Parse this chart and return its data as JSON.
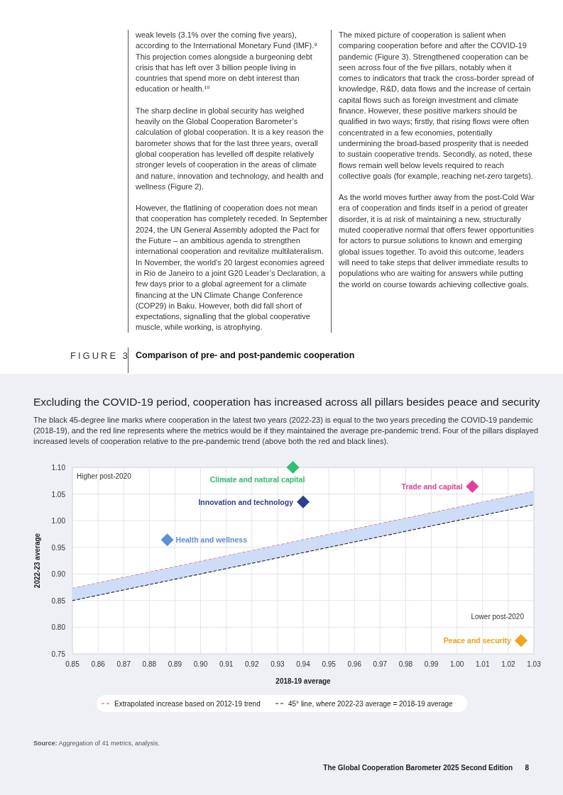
{
  "chart_data": {
    "type": "scatter",
    "title": "Excluding the COVID-19 period, cooperation has increased across all pillars besides peace and security",
    "subtitle": "The black 45-degree line marks where cooperation in the latest two years (2022-23) is equal to the two years preceding the COVID-19 pandemic (2018-19), and the red line represents where the metrics would be if they maintained the average pre-pandemic trend. Four of the pillars displayed increased levels of cooperation relative to the pre-pandemic trend (above both the red and black lines).",
    "xlabel": "2018-19 average",
    "ylabel": "2022-23 average",
    "xlim": [
      0.85,
      1.03
    ],
    "xticks": [
      0.85,
      0.86,
      0.87,
      0.88,
      0.89,
      {
        "value": 0.9,
        "label": "0.90"
      },
      0.91,
      0.92,
      0.93,
      0.94,
      0.95,
      0.96,
      0.97,
      0.98,
      0.99,
      {
        "value": 1,
        "label": "1.00"
      },
      1.01,
      1.02,
      1.03
    ],
    "ylim": [
      0.75,
      1.1
    ],
    "yticks": [
      0.75,
      {
        "value": 0.8,
        "label": "0.80"
      },
      0.85,
      {
        "value": 0.9,
        "label": "0.90"
      },
      0.95,
      {
        "value": 1,
        "label": "1.00"
      },
      1.05,
      {
        "value": 1.1,
        "label": "1.10"
      }
    ],
    "grid": true,
    "legend": "bottom",
    "series": [
      {
        "name": "Extrapolated increase based on 2012-19 trend",
        "type": "line",
        "color": "#e5484d",
        "x": [
          0.85,
          1.03
        ],
        "values": [
          0.873,
          1.055
        ],
        "line_style": "dashed"
      },
      {
        "name": "45° line, where 2022-23 average = 2018-19 average",
        "type": "line",
        "color": "#222222",
        "x": [
          0.85,
          1.03
        ],
        "values": [
          0.85,
          1.03
        ],
        "lower": [
          0.85,
          1.03
        ],
        "upper": [
          0.873,
          1.055
        ],
        "line_style": "dashed"
      },
      {
        "name": "Climate and natural capital",
        "color": "#2fbf71",
        "x": [
          0.936
        ],
        "values": [
          1.1
        ],
        "marker": "diamond"
      },
      {
        "name": "Innovation and technology",
        "color": "#2d3f8f",
        "x": [
          0.94
        ],
        "values": [
          1.035
        ],
        "marker": "diamond"
      },
      {
        "name": "Trade and capital",
        "color": "#e63e9b",
        "x": [
          1.006
        ],
        "values": [
          1.064
        ],
        "marker": "diamond"
      },
      {
        "name": "Health and wellness",
        "color": "#5b8fd9",
        "x": [
          0.887
        ],
        "values": [
          0.964
        ],
        "marker": "diamond"
      },
      {
        "name": "Peace and security",
        "color": "#f5a31a",
        "x": [
          1.025
        ],
        "values": [
          0.775
        ],
        "marker": "diamond"
      }
    ],
    "annotations": [
      "weak levels (3.1% over the coming five years), according to the International Monetary Fund (IMF).⁹ This projection comes alongside a burgeoning debt crisis that has left over 3 billion people living in countries that spend more on debt interest than education or health.¹⁰",
      "The sharp decline in global security has weighed heavily on the Global Cooperation Barometer’s calculation of global cooperation. It is a key reason the barometer shows that for the last three years, overall global cooperation has levelled off despite relatively stronger levels of cooperation in the areas of climate and nature, innovation and technology, and health and wellness (Figure 2).",
      "However, the flatlining of cooperation does not mean that cooperation has completely receded. In September 2024, the UN General Assembly adopted the Pact for the Future – an ambitious agenda to strengthen international cooperation and revitalize multilateralism. In November, the world’s 20 largest economies agreed in Rio de Janeiro to a joint G20 Leader’s Declaration, a few days prior to a global agreement for a climate financing at the UN Climate Change Conference (COP29) in Baku. However, both did fall short of expectations, signalling that the global cooperative muscle, while working, is atrophying.",
      "The mixed picture of cooperation is salient when comparing cooperation before and after the COVID-19 pandemic (Figure 3). Strengthened cooperation can be seen across four of the five pillars, notably when it comes to indicators that track the cross-border spread of knowledge, R&D, data flows and the increase of certain capital flows such as foreign investment and climate finance. However, these positive markers should be qualified in two ways; firstly, that rising flows were often concentrated in a few economies, potentially undermining the broad-based prosperity that is needed to sustain cooperative trends. Secondly, as noted, these flows remain well below levels required to reach collective goals (for example, reaching net-zero targets).",
      "As the world moves further away from the post-Cold War era of cooperation and finds itself in a period of greater disorder, it is at risk of maintaining a new, structurally muted cooperative normal that offers fewer opportunities for actors to pursue solutions to known and emerging global issues together. To avoid this outcome, leaders will need to take steps that deliver immediate results to populations who are waiting for answers while putting the world on course towards achieving collective goals.",
      "FIGURE 3",
      "Comparison of pre- and post-pandemic cooperation",
      "Higher post-2020",
      "Lower post-2020",
      "Source: Aggregation of 41 metrics, analysis.",
      "The Global Cooperation Barometer 2025 Second Edition",
      "8"
    ]
  }
}
